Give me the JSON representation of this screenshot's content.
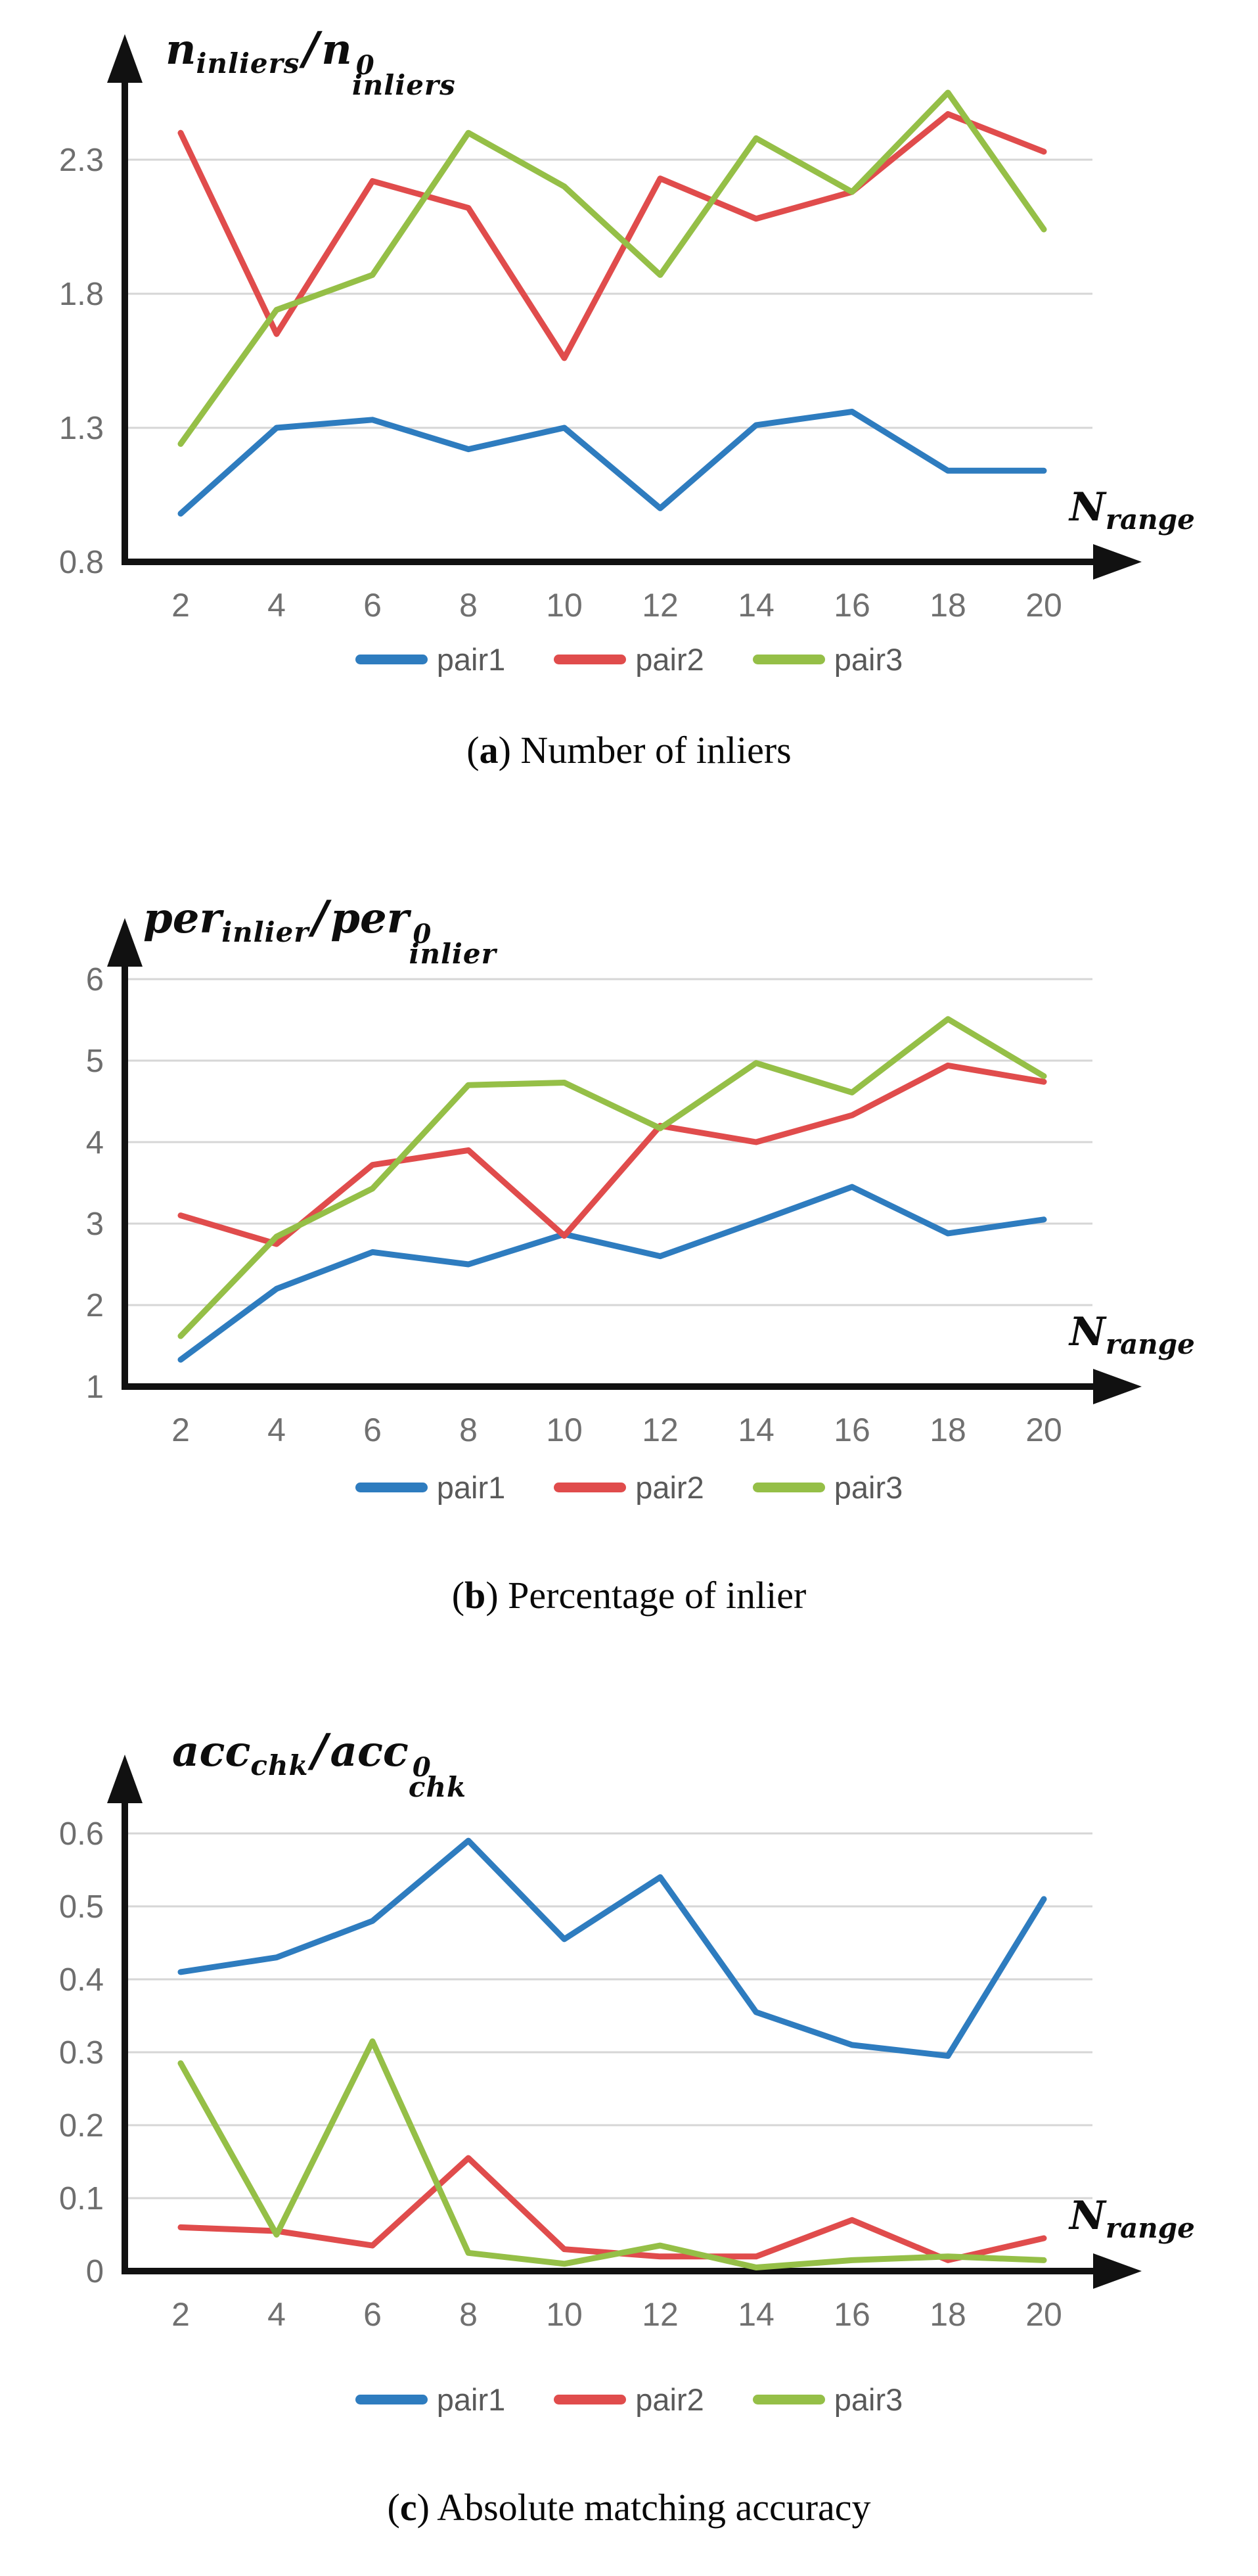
{
  "page": {
    "background": "#ffffff"
  },
  "series_colors": {
    "pair1": "#2E7CBF",
    "pair2": "#E04C4C",
    "pair3": "#95BF47"
  },
  "style": {
    "gridline_color": "#D6D6D6",
    "axis_color": "#111111",
    "tick_color": "#6e6e6e",
    "legend_text_color": "#595959"
  },
  "chart_data": [
    {
      "type": "line",
      "title": {
        "b1": "n",
        "s1": "inliers",
        "slash": "/",
        "b2": "n",
        "sup2": "0",
        "sub2": "inliers"
      },
      "xlabel": {
        "base": "N",
        "sub": "range"
      },
      "caption": {
        "letter": "a",
        "text": " Number of inliers"
      },
      "x": [
        2,
        4,
        6,
        8,
        10,
        12,
        14,
        16,
        18,
        20
      ],
      "xticks": [
        "2",
        "4",
        "6",
        "8",
        "10",
        "12",
        "14",
        "16",
        "18",
        "20"
      ],
      "yticks": [
        2.3,
        1.8,
        1.3,
        0.8
      ],
      "ylim": [
        0.8,
        2.55
      ],
      "grid": true,
      "legend_position": "bottom",
      "series": [
        {
          "name": "pair1",
          "color": "#2E7CBF",
          "values": [
            0.98,
            1.3,
            1.33,
            1.22,
            1.3,
            1.0,
            1.31,
            1.36,
            1.14,
            1.14
          ]
        },
        {
          "name": "pair2",
          "color": "#E04C4C",
          "values": [
            2.4,
            1.65,
            2.22,
            2.12,
            1.56,
            2.23,
            2.08,
            2.18,
            2.47,
            2.33
          ]
        },
        {
          "name": "pair3",
          "color": "#95BF47",
          "values": [
            1.24,
            1.74,
            1.87,
            2.4,
            2.2,
            1.87,
            2.38,
            2.18,
            2.55,
            2.04
          ]
        }
      ]
    },
    {
      "type": "line",
      "title": {
        "b1": "per",
        "s1": "inlier",
        "slash": "/",
        "b2": "per",
        "sup2": "0",
        "sub2": "inlier"
      },
      "xlabel": {
        "base": "N",
        "sub": "range"
      },
      "caption": {
        "letter": "b",
        "text": " Percentage of inlier"
      },
      "x": [
        2,
        4,
        6,
        8,
        10,
        12,
        14,
        16,
        18,
        20
      ],
      "xticks": [
        "2",
        "4",
        "6",
        "8",
        "10",
        "12",
        "14",
        "16",
        "18",
        "20"
      ],
      "yticks": [
        6,
        5,
        4,
        3,
        2,
        1
      ],
      "ylim": [
        1,
        5.6
      ],
      "grid": true,
      "legend_position": "bottom",
      "series": [
        {
          "name": "pair1",
          "color": "#2E7CBF",
          "values": [
            1.33,
            2.2,
            2.65,
            2.5,
            2.87,
            2.6,
            3.02,
            3.45,
            2.88,
            3.05
          ]
        },
        {
          "name": "pair2",
          "color": "#E04C4C",
          "values": [
            3.1,
            2.75,
            3.72,
            3.9,
            2.85,
            4.2,
            4.0,
            4.33,
            4.94,
            4.74
          ]
        },
        {
          "name": "pair3",
          "color": "#95BF47",
          "values": [
            1.62,
            2.84,
            3.43,
            4.7,
            4.73,
            4.17,
            4.97,
            4.61,
            5.51,
            4.81
          ]
        }
      ]
    },
    {
      "type": "line",
      "title": {
        "b1": "acc",
        "s1": "chk",
        "slash": "/",
        "b2": "acc",
        "sup2": "0",
        "sub2": "chk"
      },
      "xlabel": {
        "base": "N",
        "sub": "range"
      },
      "caption": {
        "letter": "c",
        "text": " Absolute matching accuracy"
      },
      "x": [
        2,
        4,
        6,
        8,
        10,
        12,
        14,
        16,
        18,
        20
      ],
      "xticks": [
        "2",
        "4",
        "6",
        "8",
        "10",
        "12",
        "14",
        "16",
        "18",
        "20"
      ],
      "yticks": [
        0.6,
        0.5,
        0.4,
        0.3,
        0.2,
        0.1,
        0
      ],
      "ylim": [
        0,
        0.62
      ],
      "grid": true,
      "legend_position": "bottom",
      "series": [
        {
          "name": "pair1",
          "color": "#2E7CBF",
          "values": [
            0.41,
            0.43,
            0.48,
            0.59,
            0.455,
            0.54,
            0.355,
            0.31,
            0.295,
            0.51
          ]
        },
        {
          "name": "pair2",
          "color": "#E04C4C",
          "values": [
            0.06,
            0.055,
            0.035,
            0.155,
            0.03,
            0.02,
            0.02,
            0.07,
            0.015,
            0.045
          ]
        },
        {
          "name": "pair3",
          "color": "#95BF47",
          "values": [
            0.285,
            0.05,
            0.315,
            0.025,
            0.01,
            0.035,
            0.005,
            0.015,
            0.02,
            0.015
          ]
        }
      ]
    }
  ]
}
